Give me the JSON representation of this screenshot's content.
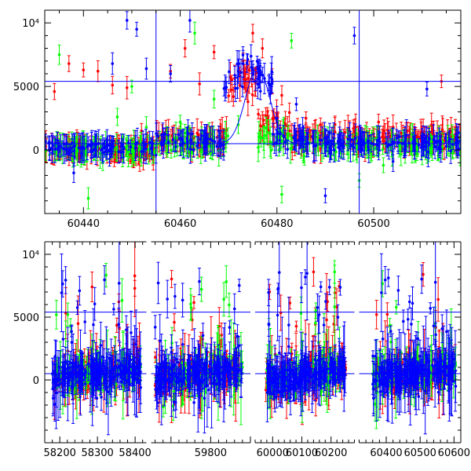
{
  "chart_data": [
    {
      "type": "scatter",
      "xlim": [
        60432,
        60518
      ],
      "ylim": [
        -5000,
        11000
      ],
      "x_ticks": [
        {
          "value": 60440,
          "label": "60440"
        },
        {
          "value": 60460,
          "label": "60460"
        },
        {
          "value": 60480,
          "label": "60480"
        },
        {
          "value": 60500,
          "label": "60500"
        }
      ],
      "y_ticks": [
        {
          "value": 0,
          "label": "0"
        },
        {
          "value": 5000,
          "label": "5000"
        },
        {
          "value": 10000,
          "label": "10⁴"
        }
      ],
      "hlines": [
        5400,
        500
      ],
      "vlines": [
        60455,
        60497
      ],
      "model_curve": {
        "center": 60476,
        "width": 3.5,
        "base": 500,
        "peak": 6000,
        "range": [
          60466,
          60486
        ]
      },
      "colors": {
        "red": "#ff0000",
        "green": "#00ff00",
        "blue": "#0000ff",
        "ref": "#0000ff"
      },
      "series": [
        {
          "color": "red",
          "segments": [
            [
              60432,
              60455,
              0,
              600,
              1
            ],
            [
              60455,
              60470,
              800,
              900,
              1
            ],
            [
              60470,
              60476,
              5500,
              1800,
              1
            ],
            [
              60476,
              60483,
              2000,
              1200,
              1
            ],
            [
              60483,
              60518,
              1000,
              900,
              1
            ]
          ],
          "x": [
            60434,
            60437,
            60440,
            60443,
            60446,
            60449,
            60452,
            60458,
            60461,
            60464,
            60467,
            60471,
            60473,
            60475,
            60477,
            60479,
            60481,
            60486,
            60489,
            60492,
            60495,
            60498,
            60501,
            60504,
            60507,
            60510,
            60514
          ],
          "y": [
            4600,
            6800,
            6300,
            6200,
            5100,
            4900,
            1500,
            6200,
            8000,
            5200,
            7700,
            4200,
            7000,
            9200,
            8000,
            5400,
            4300,
            2500,
            2000,
            2000,
            1500,
            1100,
            2200,
            1800,
            1500,
            1000,
            5400
          ]
        },
        {
          "color": "green",
          "segments": [
            [
              60432,
              60455,
              0,
              500,
              1
            ],
            [
              60455,
              60470,
              500,
              800,
              1
            ],
            [
              60476,
              60484,
              900,
              1200,
              1
            ],
            [
              60484,
              60518,
              400,
              700,
              1
            ]
          ],
          "x": [
            60435,
            60438,
            60441,
            60444,
            60447,
            60450,
            60453,
            60460,
            60463,
            60467,
            60472,
            60478,
            60481,
            60483,
            60488,
            60493,
            60497,
            60502,
            60508,
            60512
          ],
          "y": [
            7500,
            300,
            -3800,
            -1000,
            2600,
            5000,
            1800,
            2200,
            9200,
            4000,
            2000,
            1400,
            -3500,
            8600,
            600,
            300,
            -2400,
            -1200,
            1200,
            400
          ]
        },
        {
          "color": "blue",
          "segments": [
            [
              60432,
              60455,
              200,
              600,
              1
            ],
            [
              60455,
              60469,
              700,
              800,
              1
            ],
            [
              60469,
              60479,
              6000,
              2000,
              1
            ],
            [
              60479,
              60486,
              1000,
              900,
              1
            ],
            [
              60486,
              60518,
              600,
              700,
              1
            ]
          ],
          "x": [
            60438,
            60446,
            60449,
            60451,
            60453,
            60458,
            60462,
            60472,
            60475,
            60477,
            60480,
            60484,
            60490,
            60496,
            60504,
            60511,
            60515
          ],
          "y": [
            -1800,
            6800,
            10200,
            9500,
            6400,
            6000,
            10200,
            6200,
            6300,
            5900,
            2500,
            3600,
            -3600,
            9000,
            -900,
            4800,
            300
          ]
        }
      ]
    },
    {
      "type": "scatter",
      "ylim": [
        -5000,
        11000
      ],
      "axis_breaks": true,
      "panels": [
        {
          "xlim": [
            58160,
            58430
          ],
          "x_ticks": [
            {
              "value": 58200,
              "label": "58200"
            },
            {
              "value": 58300,
              "label": "58300"
            },
            {
              "value": 58400,
              "label": "58400"
            }
          ],
          "data_range": [
            58180,
            58415
          ],
          "trend": [
            200,
            800
          ]
        },
        {
          "xlim": [
            59650,
            59900
          ],
          "x_ticks": [
            {
              "value": 59800,
              "label": "59800"
            }
          ],
          "data_range": [
            59660,
            59880
          ],
          "trend": [
            100,
            900
          ]
        },
        {
          "xlim": [
            59940,
            60280
          ],
          "x_ticks": [
            {
              "value": 60000,
              "label": "60000"
            },
            {
              "value": 60100,
              "label": "60100"
            },
            {
              "value": 60200,
              "label": "60200"
            }
          ],
          "data_range": [
            59975,
            60250
          ],
          "trend": [
            0,
            900
          ]
        },
        {
          "xlim": [
            60320,
            60620
          ],
          "x_ticks": [
            {
              "value": 60400,
              "label": "60400"
            },
            {
              "value": 60500,
              "label": "60500"
            },
            {
              "value": 60600,
              "label": "60600"
            }
          ],
          "data_range": [
            60360,
            60605
          ],
          "trend": [
            200,
            900
          ]
        }
      ],
      "y_ticks": [
        {
          "value": 0,
          "label": "0"
        },
        {
          "value": 5000,
          "label": "5000"
        },
        {
          "value": 10000,
          "label": "10⁴"
        }
      ],
      "hlines": [
        5400,
        500
      ],
      "colors": {
        "red": "#ff0000",
        "green": "#00ff00",
        "blue": "#0000ff",
        "ref": "#0000ff"
      }
    }
  ]
}
